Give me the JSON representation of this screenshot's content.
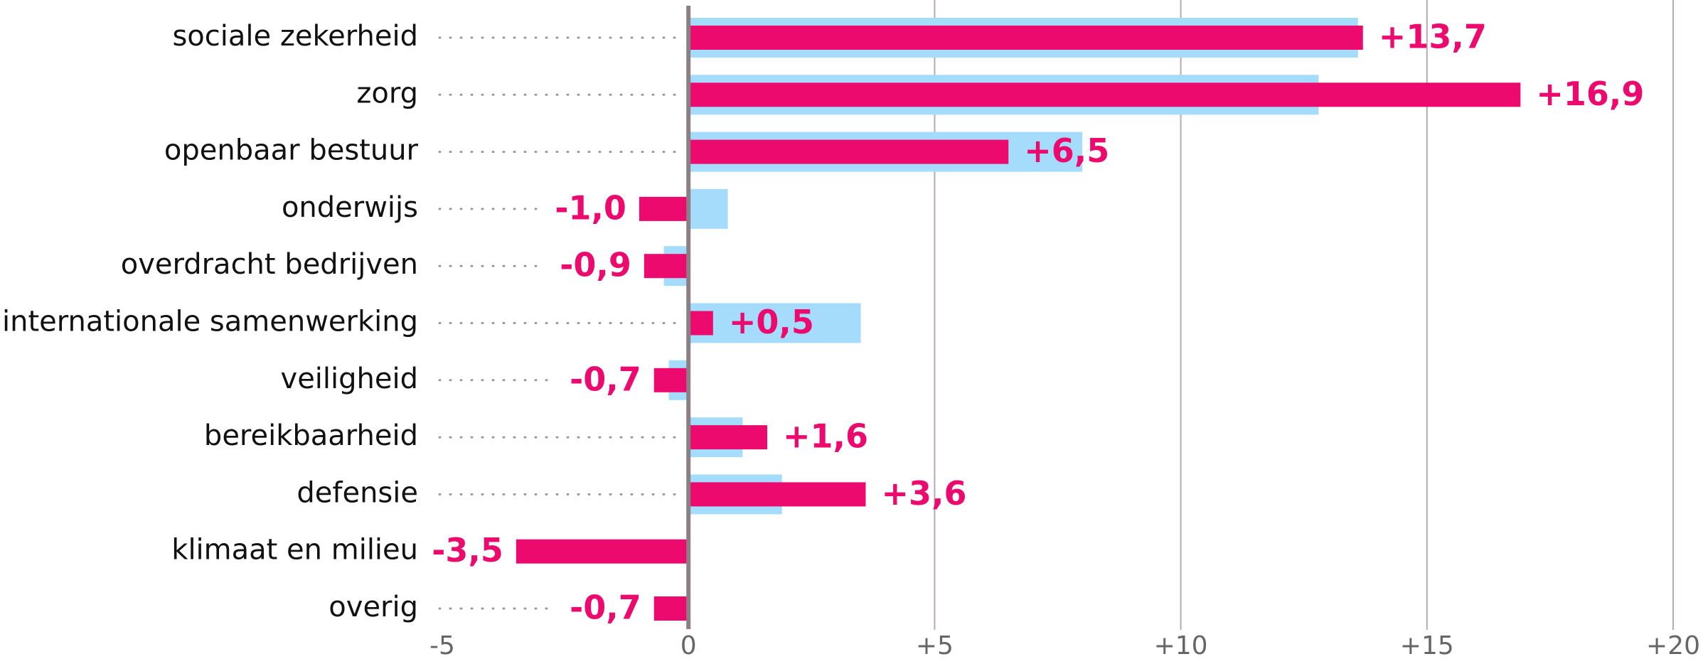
{
  "chart_data": {
    "type": "hbar",
    "categories": [
      "sociale zekerheid",
      "zorg",
      "openbaar bestuur",
      "onderwijs",
      "overdracht bedrijven",
      "internationale samenwerking",
      "veiligheid",
      "bereikbaarheid",
      "defensie",
      "klimaat en milieu",
      "overig"
    ],
    "series": [
      {
        "color": "#a6dcfb",
        "values": [
          13.6,
          12.8,
          8.0,
          0.8,
          -0.5,
          3.5,
          -0.4,
          1.1,
          1.9,
          null,
          null
        ]
      },
      {
        "color": "#ec0a6e",
        "values": [
          13.7,
          16.9,
          6.5,
          -1.0,
          -0.9,
          0.5,
          -0.7,
          1.6,
          3.6,
          -3.5,
          -0.7
        ],
        "value_labels": [
          "+13,7",
          "+16,9",
          "+6,5",
          "-1,0",
          "-0,9",
          "+0,5",
          "-0,7",
          "+1,6",
          "+3,6",
          "-3,5",
          "-0,7"
        ]
      }
    ],
    "xlim": [
      -5,
      20
    ],
    "xticks": [
      -5,
      0,
      {
        "value": 5,
        "label": "+5"
      },
      {
        "value": 10,
        "label": "+10"
      },
      {
        "value": 15,
        "label": "+15"
      },
      {
        "value": 20,
        "label": "+20"
      }
    ],
    "grid": true
  }
}
